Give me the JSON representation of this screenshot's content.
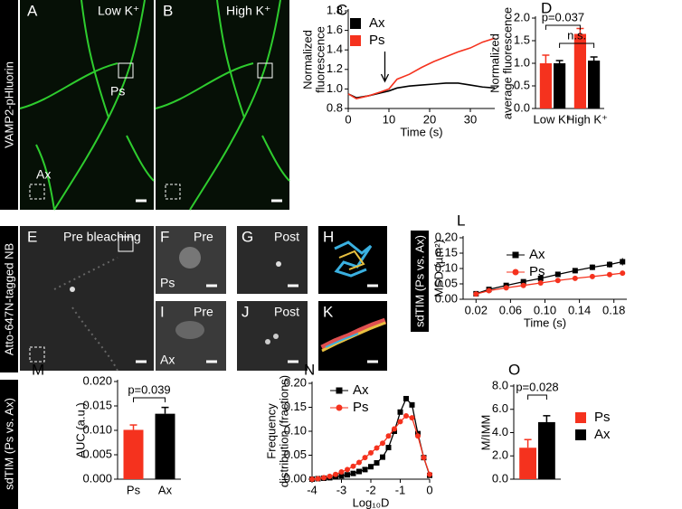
{
  "side_labels": [
    "VAMP2-pHluorin",
    "Atto-647N-tagged NB",
    "sdTIM (Ps vs. Ax)",
    "sdTIM (Ps vs. Ax)"
  ],
  "images": [
    {
      "letter": "A",
      "texts": [
        "Low K⁺",
        "Ps",
        "Ax"
      ]
    },
    {
      "letter": "B",
      "texts": [
        "High K⁺"
      ]
    },
    {
      "letter": "E",
      "texts": [
        "Pre bleaching"
      ]
    },
    {
      "letter": "F",
      "texts": [
        "Pre",
        "Ps"
      ]
    },
    {
      "letter": "G",
      "texts": [
        "Post"
      ]
    },
    {
      "letter": "H",
      "texts": []
    },
    {
      "letter": "I",
      "texts": [
        "Pre",
        "Ax"
      ]
    },
    {
      "letter": "J",
      "texts": [
        "Post"
      ]
    },
    {
      "letter": "K",
      "texts": []
    }
  ],
  "chart_data": [
    {
      "type": "line",
      "panel": "C",
      "xlabel": "Time (s)",
      "ylabel": [
        "Normalized",
        "fluorescence"
      ],
      "x": [
        0,
        2,
        5,
        8,
        10,
        12,
        15,
        18,
        21,
        24,
        27,
        30,
        33,
        36
      ],
      "series": [
        {
          "name": "Ax",
          "color": "#000000",
          "values": [
            0.95,
            0.91,
            0.93,
            0.96,
            0.98,
            1.01,
            1.03,
            1.04,
            1.05,
            1.06,
            1.06,
            1.04,
            1.02,
            1.01
          ]
        },
        {
          "name": "Ps",
          "color": "#f5321e",
          "values": [
            0.95,
            0.9,
            0.93,
            0.97,
            1.0,
            1.1,
            1.15,
            1.22,
            1.28,
            1.33,
            1.38,
            1.42,
            1.48,
            1.52
          ]
        }
      ],
      "arrow_x": 9,
      "xlim": [
        0,
        36
      ],
      "ylim": [
        0.8,
        1.8
      ],
      "xticks": [
        0,
        10,
        20,
        30
      ],
      "yticks": [
        0.8,
        {
          "value": 1,
          "label": "1.0"
        },
        1.2,
        1.4,
        1.6,
        1.8
      ],
      "legend": "upper left"
    },
    {
      "type": "bar",
      "panel": "D",
      "ylabel": [
        "Normalized",
        "average fluorescence"
      ],
      "categories": [
        "Low K⁺",
        "High K⁺"
      ],
      "series": [
        {
          "name": "Ps",
          "color": "#f5321e",
          "values": [
            1.0,
            1.65
          ],
          "errors": [
            0.18,
            0.12
          ]
        },
        {
          "name": "Ax",
          "color": "#000000",
          "values": [
            1.0,
            1.06
          ],
          "errors": [
            0.06,
            0.08
          ]
        }
      ],
      "ylim": [
        0,
        2
      ],
      "yticks": [
        {
          "value": 0,
          "label": "0.0"
        },
        0.5,
        {
          "value": 1,
          "label": "1.0"
        },
        1.5,
        {
          "value": 2,
          "label": "2.0"
        }
      ],
      "annotations": [
        "p=0.037",
        "n.s."
      ]
    },
    {
      "type": "line",
      "panel": "L",
      "xlabel": "Time (s)",
      "ylabel": [
        "MSD (µm²)"
      ],
      "markers": true,
      "x": [
        0.02,
        0.035,
        0.055,
        0.075,
        0.095,
        0.115,
        0.135,
        0.155,
        0.175,
        0.19
      ],
      "series": [
        {
          "name": "Ax",
          "color": "#000000",
          "marker": "square",
          "values": [
            0.018,
            0.032,
            0.045,
            0.057,
            0.068,
            0.081,
            0.093,
            0.104,
            0.113,
            0.122
          ],
          "errors": [
            0.002,
            0.003,
            0.004,
            0.005,
            0.006,
            0.007,
            0.008,
            0.009,
            0.01,
            0.012
          ]
        },
        {
          "name": "Ps",
          "color": "#f5321e",
          "marker": "circle",
          "values": [
            0.017,
            0.028,
            0.037,
            0.045,
            0.053,
            0.061,
            0.068,
            0.074,
            0.08,
            0.085
          ],
          "errors": [
            0.002,
            0.002,
            0.003,
            0.003,
            0.004,
            0.004,
            0.005,
            0.005,
            0.006,
            0.006
          ]
        }
      ],
      "xlim": [
        0.005,
        0.195
      ],
      "ylim": [
        0,
        0.2
      ],
      "xticks": [
        0.02,
        0.06,
        {
          "value": 0.1,
          "label": "0.10"
        },
        0.14,
        0.18
      ],
      "yticks": [
        {
          "value": 0,
          "label": "0.00"
        },
        0.05,
        {
          "value": 0.1,
          "label": "0.10"
        },
        0.15,
        {
          "value": 0.2,
          "label": "0.20"
        }
      ],
      "legend": "upper center"
    },
    {
      "type": "bar",
      "panel": "M",
      "ylabel": [
        "AUC (a.u.)"
      ],
      "categories": [
        "Ps",
        "Ax"
      ],
      "values": [
        0.0101,
        0.0134
      ],
      "errors": [
        0.001,
        0.0013
      ],
      "colors": [
        "#f5321e",
        "#000000"
      ],
      "ylim": [
        0,
        0.02
      ],
      "yticks": [
        {
          "value": 0,
          "label": "0.000"
        },
        {
          "value": 0.005,
          "label": "0.005"
        },
        {
          "value": 0.01,
          "label": "0.010"
        },
        {
          "value": 0.015,
          "label": "0.015"
        },
        {
          "value": 0.02,
          "label": "0.020"
        }
      ],
      "annotations": [
        "p=0.039"
      ]
    },
    {
      "type": "line",
      "panel": "N",
      "xlabel": "Log₁₀D",
      "ylabel": [
        "Frequency",
        "distribution (fractions)"
      ],
      "markers": true,
      "x": [
        -4,
        -3.8,
        -3.6,
        -3.4,
        -3.2,
        -3,
        -2.8,
        -2.6,
        -2.4,
        -2.2,
        -2,
        -1.8,
        -1.6,
        -1.4,
        -1.2,
        -1,
        -0.8,
        -0.6,
        -0.4,
        -0.2,
        0
      ],
      "series": [
        {
          "name": "Ax",
          "color": "#000000",
          "marker": "square",
          "values": [
            0,
            0.001,
            0.002,
            0.003,
            0.005,
            0.007,
            0.009,
            0.012,
            0.016,
            0.02,
            0.026,
            0.034,
            0.046,
            0.066,
            0.1,
            0.14,
            0.168,
            0.155,
            0.095,
            0.045,
            0.008
          ]
        },
        {
          "name": "Ps",
          "color": "#f5321e",
          "marker": "circle",
          "values": [
            0,
            0.001,
            0.003,
            0.006,
            0.01,
            0.015,
            0.02,
            0.027,
            0.035,
            0.045,
            0.055,
            0.065,
            0.075,
            0.09,
            0.105,
            0.12,
            0.132,
            0.128,
            0.09,
            0.045,
            0.01
          ]
        }
      ],
      "xlim": [
        -4,
        0
      ],
      "ylim": [
        0,
        0.2
      ],
      "xticks": [
        -4,
        -3,
        -2,
        -1,
        0
      ],
      "yticks": [
        {
          "value": 0,
          "label": "0.00"
        },
        0.05,
        {
          "value": 0.1,
          "label": "0.10"
        },
        0.15,
        {
          "value": 0.2,
          "label": "0.20"
        }
      ],
      "legend": "upper left"
    },
    {
      "type": "bar",
      "panel": "O",
      "ylabel": [
        "M/IMM"
      ],
      "series": [
        {
          "name": "Ps",
          "color": "#f5321e",
          "values": [
            2.7
          ],
          "errors": [
            0.7
          ]
        },
        {
          "name": "Ax",
          "color": "#000000",
          "values": [
            4.9
          ],
          "errors": [
            0.55
          ]
        }
      ],
      "ylim": [
        0,
        8
      ],
      "yticks": [
        {
          "value": 0,
          "label": "0.0"
        },
        {
          "value": 2,
          "label": "2.0"
        },
        {
          "value": 4,
          "label": "4.0"
        },
        {
          "value": 6,
          "label": "6.0"
        },
        {
          "value": 8,
          "label": "8.0"
        }
      ],
      "annotations": [
        "p=0.028"
      ],
      "legend": "right"
    }
  ]
}
